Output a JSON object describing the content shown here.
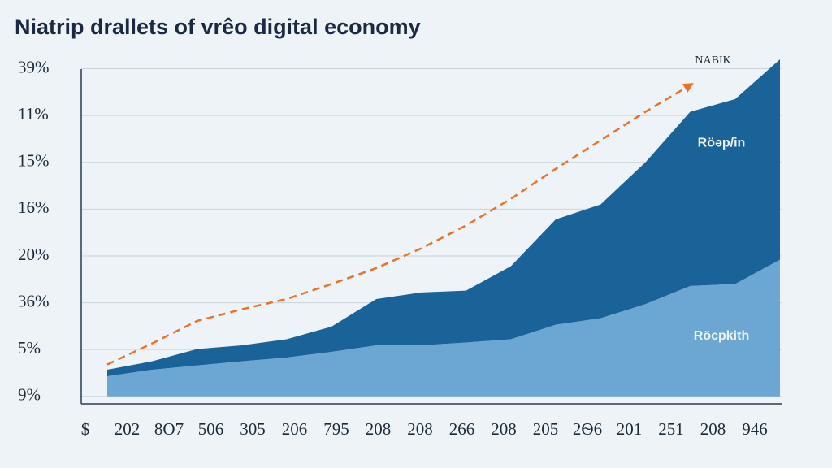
{
  "chart_data": {
    "type": "area",
    "title": "Niatrip drallets of vrêo digital economy",
    "categories": [
      "$",
      "202",
      "8О7",
      "506",
      "305",
      "206",
      "795",
      "208",
      "208",
      "266",
      "208",
      "205",
      "2Ѳ6",
      "201",
      "251",
      "208",
      "946"
    ],
    "series": [
      {
        "name": "Röcpkith",
        "color": "#6ba7d2",
        "values": [
          null,
          0.43,
          0.57,
          0.66,
          0.75,
          0.83,
          0.95,
          1.09,
          1.09,
          1.15,
          1.22,
          1.53,
          1.67,
          1.97,
          2.36,
          2.4,
          2.92
        ]
      },
      {
        "name": "Röəp/in",
        "color": "#1a6399",
        "values": [
          null,
          0.14,
          0.18,
          0.35,
          0.34,
          0.39,
          0.54,
          0.99,
          1.13,
          1.11,
          1.56,
          2.25,
          2.43,
          3.03,
          3.72,
          3.95,
          4.28
        ]
      },
      {
        "name": "NABIK",
        "color": "#e8722a",
        "type": "line",
        "dashed": true,
        "values": [
          null,
          0.68,
          1.13,
          1.61,
          1.86,
          2.08,
          2.4,
          2.74,
          3.16,
          3.65,
          4.22,
          4.86,
          5.47,
          6.08,
          6.65,
          null,
          null
        ]
      }
    ],
    "stacked": true,
    "ylim": [
      -0.16,
      7.2
    ],
    "yticks": [
      {
        "value": 0,
        "label": "9%"
      },
      {
        "value": 1,
        "label": "5%"
      },
      {
        "value": 2,
        "label": "36%"
      },
      {
        "value": 3,
        "label": "20%"
      },
      {
        "value": 4,
        "label": "16%"
      },
      {
        "value": 5,
        "label": "15%"
      },
      {
        "value": 6,
        "label": "11%"
      },
      {
        "value": 7,
        "label": "39%"
      }
    ],
    "grid": true
  }
}
